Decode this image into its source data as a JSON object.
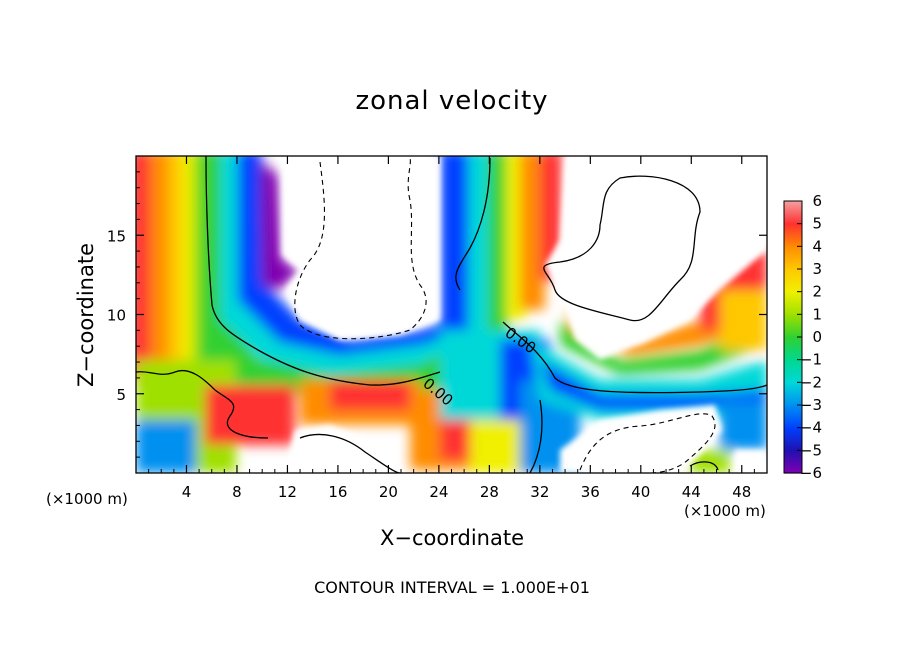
{
  "chart_data": {
    "type": "heatmap",
    "title": "zonal velocity",
    "xlabel": "X−coordinate",
    "ylabel": "Z−coordinate",
    "x_unit_left": "(×1000 m)",
    "x_unit_right": "(×1000 m)",
    "xlim": [
      0,
      50
    ],
    "ylim": [
      0,
      20
    ],
    "x_ticks": [
      "4",
      "8",
      "12",
      "16",
      "20",
      "24",
      "28",
      "32",
      "36",
      "40",
      "44",
      "48"
    ],
    "y_ticks": [
      "5",
      "10",
      "15"
    ],
    "colorbar": {
      "ticks": [
        "6",
        "5",
        "4",
        "3",
        "2",
        "1",
        "0",
        "−1",
        "−2",
        "−3",
        "−4",
        "−5",
        "−6"
      ],
      "range": [
        -6,
        6
      ]
    },
    "contour_label": "0.00",
    "footer": "CONTOUR INTERVAL = 1.000E+01",
    "colors": {
      "v6": "#f4a0a0",
      "v5": "#ff3030",
      "v4": "#ff8c00",
      "v3": "#ffc800",
      "v2": "#f0f000",
      "v1": "#a0e000",
      "v0": "#30d030",
      "vm1": "#00d890",
      "vm2": "#00d8d8",
      "vm3": "#0090f0",
      "vm4": "#0040ff",
      "vm5": "#2010b0",
      "vm6": "#8000b0"
    }
  }
}
